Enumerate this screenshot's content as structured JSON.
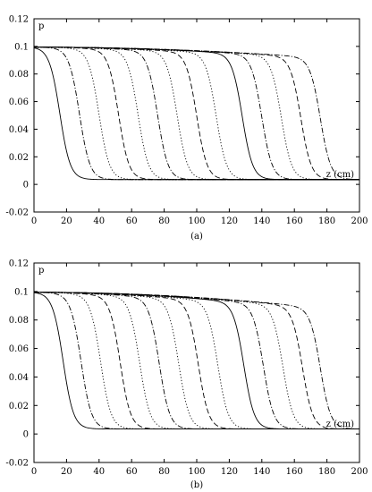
{
  "chart_data": [
    {
      "type": "line",
      "panel_label": "(a)",
      "ylabel": "p",
      "xlabel": "z (cm)",
      "xlim": [
        0,
        200
      ],
      "ylim": [
        -0.02,
        0.12
      ],
      "x_ticks": [
        0,
        20,
        40,
        60,
        80,
        100,
        120,
        140,
        160,
        180,
        200
      ],
      "y_ticks": [
        "-0.02",
        "0",
        "0.02",
        "0.04",
        "0.06",
        "0.08",
        "0.1",
        "0.12"
      ],
      "grid": false,
      "legend": "none",
      "series": [
        {
          "style": "solid",
          "front_z": 16,
          "top_value": 0.0995,
          "plateau_end": 0.0975,
          "base_value": 0.0035
        },
        {
          "style": "dashdot",
          "front_z": 28,
          "top_value": 0.0995,
          "plateau_end": 0.0978,
          "base_value": 0.0035
        },
        {
          "style": "dotted",
          "front_z": 40,
          "top_value": 0.0995,
          "plateau_end": 0.0975,
          "base_value": 0.0035
        },
        {
          "style": "dashed",
          "front_z": 52,
          "top_value": 0.0995,
          "plateau_end": 0.0972,
          "base_value": 0.0035
        },
        {
          "style": "dotted",
          "front_z": 64,
          "top_value": 0.0995,
          "plateau_end": 0.0968,
          "base_value": 0.0035
        },
        {
          "style": "dashdot",
          "front_z": 76,
          "top_value": 0.0995,
          "plateau_end": 0.0964,
          "base_value": 0.0035
        },
        {
          "style": "dotted",
          "front_z": 88,
          "top_value": 0.0995,
          "plateau_end": 0.096,
          "base_value": 0.0035
        },
        {
          "style": "dashed",
          "front_z": 100,
          "top_value": 0.0995,
          "plateau_end": 0.0955,
          "base_value": 0.0035
        },
        {
          "style": "dotted",
          "front_z": 112,
          "top_value": 0.0995,
          "plateau_end": 0.095,
          "base_value": 0.0035
        },
        {
          "style": "solid",
          "front_z": 128,
          "top_value": 0.0995,
          "plateau_end": 0.0945,
          "base_value": 0.0035
        },
        {
          "style": "dashdot",
          "front_z": 140,
          "top_value": 0.0995,
          "plateau_end": 0.0938,
          "base_value": 0.0035
        },
        {
          "style": "dotted",
          "front_z": 152,
          "top_value": 0.0995,
          "plateau_end": 0.093,
          "base_value": 0.0035
        },
        {
          "style": "dashed",
          "front_z": 164,
          "top_value": 0.0995,
          "plateau_end": 0.0922,
          "base_value": 0.0035
        },
        {
          "style": "dashdot",
          "front_z": 176,
          "top_value": 0.0995,
          "plateau_end": 0.0915,
          "base_value": 0.0035
        }
      ]
    },
    {
      "type": "line",
      "panel_label": "(b)",
      "ylabel": "p",
      "xlabel": "z (cm)",
      "xlim": [
        0,
        200
      ],
      "ylim": [
        -0.02,
        0.12
      ],
      "x_ticks": [
        0,
        20,
        40,
        60,
        80,
        100,
        120,
        140,
        160,
        180,
        200
      ],
      "y_ticks": [
        "-0.02",
        "0",
        "0.02",
        "0.04",
        "0.06",
        "0.08",
        "0.1",
        "0.12"
      ],
      "grid": false,
      "legend": "none",
      "series": [
        {
          "style": "solid",
          "front_z": 18,
          "top_value": 0.0995,
          "plateau_end": 0.0975,
          "base_value": 0.0035
        },
        {
          "style": "dashdot",
          "front_z": 29,
          "top_value": 0.0995,
          "plateau_end": 0.0972,
          "base_value": 0.0035
        },
        {
          "style": "dotted",
          "front_z": 41,
          "top_value": 0.0995,
          "plateau_end": 0.0968,
          "base_value": 0.0035
        },
        {
          "style": "dashed",
          "front_z": 53,
          "top_value": 0.0995,
          "plateau_end": 0.0962,
          "base_value": 0.0035
        },
        {
          "style": "dotted",
          "front_z": 65,
          "top_value": 0.0995,
          "plateau_end": 0.0956,
          "base_value": 0.0035
        },
        {
          "style": "dashdot",
          "front_z": 77,
          "top_value": 0.0995,
          "plateau_end": 0.095,
          "base_value": 0.0035
        },
        {
          "style": "dotted",
          "front_z": 89,
          "top_value": 0.0995,
          "plateau_end": 0.0943,
          "base_value": 0.0035
        },
        {
          "style": "dashed",
          "front_z": 101,
          "top_value": 0.0995,
          "plateau_end": 0.0936,
          "base_value": 0.0035
        },
        {
          "style": "dotted",
          "front_z": 113,
          "top_value": 0.0995,
          "plateau_end": 0.0928,
          "base_value": 0.0035
        },
        {
          "style": "solid",
          "front_z": 129,
          "top_value": 0.0995,
          "plateau_end": 0.092,
          "base_value": 0.0035
        },
        {
          "style": "dashdot",
          "front_z": 141,
          "top_value": 0.0995,
          "plateau_end": 0.0911,
          "base_value": 0.0035
        },
        {
          "style": "dotted",
          "front_z": 153,
          "top_value": 0.0995,
          "plateau_end": 0.0902,
          "base_value": 0.0035
        },
        {
          "style": "dashed",
          "front_z": 165,
          "top_value": 0.0995,
          "plateau_end": 0.0892,
          "base_value": 0.0035
        },
        {
          "style": "dashdot",
          "front_z": 176,
          "top_value": 0.0995,
          "plateau_end": 0.0882,
          "base_value": 0.0035
        }
      ]
    }
  ]
}
